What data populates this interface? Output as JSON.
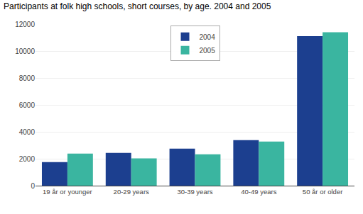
{
  "chart_data": {
    "type": "bar",
    "title": "Participants at folk high schools, short courses, by age. 2004 and 2005",
    "categories": [
      "19 år or younger",
      "20-29 years",
      "30-39 years",
      "40-49 years",
      "50 år or older"
    ],
    "series": [
      {
        "name": "2004",
        "color": "#1c3f8f",
        "values": [
          1750,
          2430,
          2750,
          3380,
          11100
        ]
      },
      {
        "name": "2005",
        "color": "#3ab5a0",
        "values": [
          2380,
          2020,
          2330,
          3280,
          11400
        ]
      }
    ],
    "ylim": [
      0,
      12000
    ],
    "yticks": [
      0,
      2000,
      4000,
      6000,
      8000,
      10000,
      12000
    ],
    "grid": true,
    "legend": "upper center"
  }
}
